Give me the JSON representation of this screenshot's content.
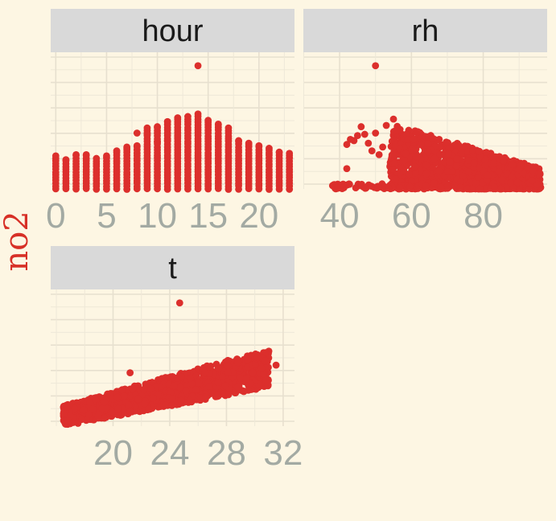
{
  "chart_data": {
    "type": "scatter",
    "y_label": "no2",
    "point_color": "#dc2f2c",
    "background_color": "#fdf6e3",
    "strip_color": "#d9d9d9",
    "grid": true,
    "y_range": [
      0,
      100
    ],
    "panels": [
      {
        "name": "hour",
        "x_ticks": [
          0,
          5,
          10,
          15,
          20
        ],
        "x_tick_labels": [
          "0",
          "5",
          "10",
          "15",
          "20"
        ],
        "x_range": [
          -0.5,
          23.5
        ],
        "y_profile": {
          "x": [
            0,
            1,
            2,
            3,
            4,
            5,
            6,
            7,
            8,
            9,
            10,
            11,
            12,
            13,
            14,
            15,
            16,
            17,
            18,
            19,
            20,
            21,
            22,
            23
          ],
          "max_no2": [
            26,
            23,
            27,
            27,
            24,
            26,
            30,
            32,
            34,
            48,
            49,
            53,
            56,
            57,
            59,
            54,
            51,
            48,
            38,
            36,
            34,
            32,
            29,
            28
          ],
          "min_no2": [
            0,
            0,
            0,
            0,
            0,
            0,
            0,
            0,
            0,
            0,
            0,
            0,
            0,
            0,
            0,
            0,
            0,
            0,
            0,
            0,
            0,
            0,
            0,
            0
          ]
        },
        "outlier": {
          "x": 14,
          "no2": 97
        }
      },
      {
        "name": "rh",
        "x_ticks": [
          40,
          60,
          80
        ],
        "x_tick_labels": [
          "40",
          "60",
          "80"
        ],
        "x_range": [
          29.9,
          97.8
        ],
        "outlier": {
          "x": 50,
          "no2": 97
        }
      },
      {
        "name": "t",
        "x_ticks": [
          20,
          24,
          28,
          32
        ],
        "x_tick_labels": [
          "20",
          "24",
          "28",
          "32"
        ],
        "x_range": [
          15.6,
          32.8
        ],
        "outlier": {
          "x": 24.7,
          "no2": 97
        }
      }
    ]
  }
}
